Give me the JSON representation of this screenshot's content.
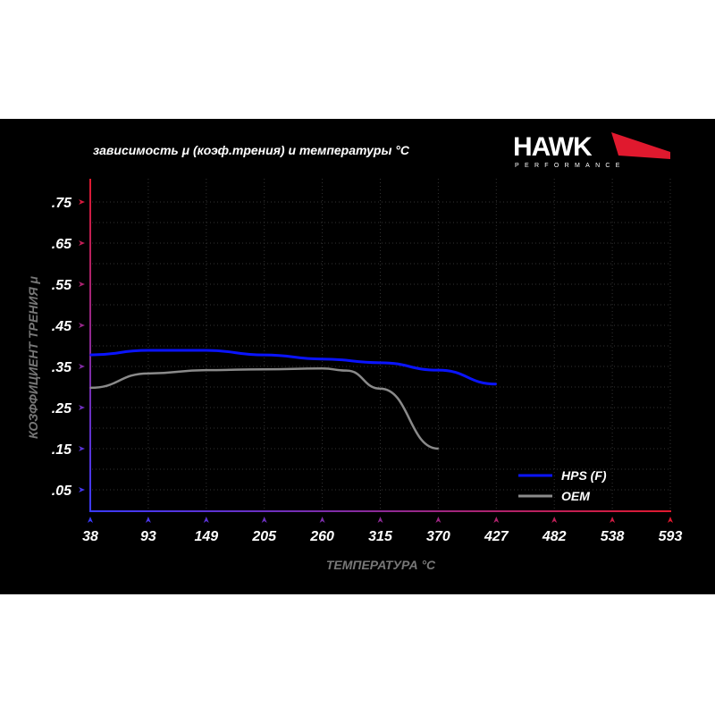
{
  "chart_data": {
    "type": "line",
    "title": "зависимость μ (коэф.трения) и температуры °С",
    "xlabel": "ТЕМПЕРАТУРА °С",
    "ylabel": "КОЗФФИЦИЕНТ ТРЕНИЯ μ",
    "x_ticks": [
      "38",
      "93",
      "149",
      "205",
      "260",
      "315",
      "370",
      "427",
      "482",
      "538",
      "593"
    ],
    "y_ticks": [
      ".75",
      ".65",
      ".55",
      ".45",
      ".35",
      ".25",
      ".15",
      ".05"
    ],
    "y_tick_values": [
      0.75,
      0.65,
      0.55,
      0.45,
      0.35,
      0.25,
      0.15,
      0.05
    ],
    "ylim": [
      0,
      0.8
    ],
    "grid": true,
    "legend_position": "bottom-right",
    "series": [
      {
        "name": "HPS (F)",
        "color": "#0a14ff",
        "x": [
          38,
          93,
          149,
          205,
          260,
          315,
          370,
          427
        ],
        "values": [
          0.378,
          0.389,
          0.389,
          0.378,
          0.368,
          0.359,
          0.341,
          0.307
        ]
      },
      {
        "name": "OEM",
        "color": "#8a8a8a",
        "x": [
          38,
          93,
          149,
          205,
          260,
          283,
          315,
          370
        ],
        "values": [
          0.298,
          0.333,
          0.341,
          0.343,
          0.345,
          0.34,
          0.296,
          0.15
        ]
      }
    ]
  },
  "logo": {
    "brand": "HAWK",
    "sub": "PERFORMANCE",
    "accent": "#e0192e"
  }
}
